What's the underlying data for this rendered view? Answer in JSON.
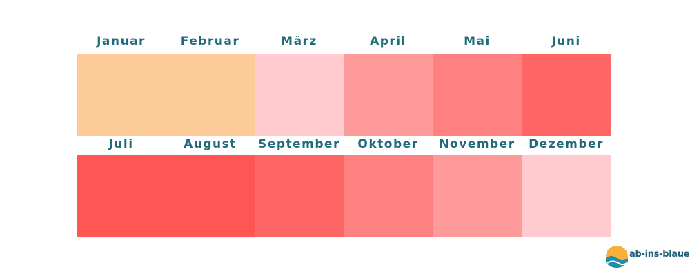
{
  "months": [
    {
      "label": "Januar",
      "color": "#fccb98"
    },
    {
      "label": "Februar",
      "color": "#fccb98"
    },
    {
      "label": "März",
      "color": "#ffcbcf"
    },
    {
      "label": "April",
      "color": "#ff9a9b"
    },
    {
      "label": "Mai",
      "color": "#ff8080"
    },
    {
      "label": "Juni",
      "color": "#ff6666"
    },
    {
      "label": "Juli",
      "color": "#ff5555"
    },
    {
      "label": "August",
      "color": "#ff5555"
    },
    {
      "label": "September",
      "color": "#ff6666"
    },
    {
      "label": "Oktober",
      "color": "#ff8080"
    },
    {
      "label": "November",
      "color": "#ff9a9b"
    },
    {
      "label": "Dezember",
      "color": "#ffcbcf"
    }
  ],
  "logo": {
    "text": "ab-ins-blaue.de"
  }
}
